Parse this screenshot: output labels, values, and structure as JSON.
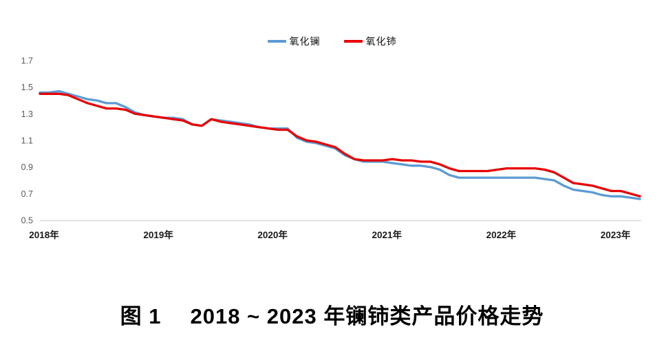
{
  "page": {
    "background": "#ffffff"
  },
  "legend": {
    "items": [
      {
        "label": "氧化镧",
        "color": "#5b9bd5"
      },
      {
        "label": "氧化铈",
        "color": "#e80000"
      }
    ]
  },
  "caption": {
    "figure_label": "图 1",
    "title": "2018 ~ 2023 年镧铈类产品价格走势"
  },
  "chart_data": {
    "type": "line",
    "title": "图 1 2018~2023 年镧铈类产品价格走势",
    "xlabel": "",
    "ylabel": "",
    "ylim": [
      0.5,
      1.7
    ],
    "yticks": [
      "1.7",
      "1.5",
      "1.3",
      "1.1",
      "0.9",
      "0.7",
      "0.5"
    ],
    "grid": false,
    "legend_position": "top-center",
    "x_year_labels": [
      "2018年",
      "2019年",
      "2020年",
      "2021年",
      "2022年",
      "2023年"
    ],
    "x_year_month_index": [
      0,
      12,
      24,
      36,
      48,
      60
    ],
    "x": [
      "2018-01",
      "2018-02",
      "2018-03",
      "2018-04",
      "2018-05",
      "2018-06",
      "2018-07",
      "2018-08",
      "2018-09",
      "2018-10",
      "2018-11",
      "2018-12",
      "2019-01",
      "2019-02",
      "2019-03",
      "2019-04",
      "2019-05",
      "2019-06",
      "2019-07",
      "2019-08",
      "2019-09",
      "2019-10",
      "2019-11",
      "2019-12",
      "2020-01",
      "2020-02",
      "2020-03",
      "2020-04",
      "2020-05",
      "2020-06",
      "2020-07",
      "2020-08",
      "2020-09",
      "2020-10",
      "2020-11",
      "2020-12",
      "2021-01",
      "2021-02",
      "2021-03",
      "2021-04",
      "2021-05",
      "2021-06",
      "2021-07",
      "2021-08",
      "2021-09",
      "2021-10",
      "2021-11",
      "2021-12",
      "2022-01",
      "2022-02",
      "2022-03",
      "2022-04",
      "2022-05",
      "2022-06",
      "2022-07",
      "2022-08",
      "2022-09",
      "2022-10",
      "2022-11",
      "2022-12",
      "2023-01",
      "2023-02",
      "2023-03",
      "2023-04"
    ],
    "series": [
      {
        "name": "氧化镧",
        "color": "#5b9bd5",
        "values": [
          1.46,
          1.46,
          1.47,
          1.45,
          1.43,
          1.41,
          1.4,
          1.38,
          1.38,
          1.35,
          1.31,
          1.29,
          1.28,
          1.27,
          1.27,
          1.26,
          1.22,
          1.21,
          1.26,
          1.25,
          1.24,
          1.23,
          1.22,
          1.2,
          1.19,
          1.19,
          1.19,
          1.12,
          1.09,
          1.08,
          1.06,
          1.04,
          0.99,
          0.96,
          0.94,
          0.94,
          0.94,
          0.93,
          0.92,
          0.91,
          0.91,
          0.9,
          0.88,
          0.84,
          0.82,
          0.82,
          0.82,
          0.82,
          0.82,
          0.82,
          0.82,
          0.82,
          0.82,
          0.81,
          0.8,
          0.76,
          0.73,
          0.72,
          0.71,
          0.69,
          0.68,
          0.68,
          0.67,
          0.66
        ]
      },
      {
        "name": "氧化铈",
        "color": "#e80000",
        "values": [
          1.45,
          1.45,
          1.45,
          1.44,
          1.41,
          1.38,
          1.36,
          1.34,
          1.34,
          1.33,
          1.3,
          1.29,
          1.28,
          1.27,
          1.26,
          1.25,
          1.22,
          1.21,
          1.26,
          1.24,
          1.23,
          1.22,
          1.21,
          1.2,
          1.19,
          1.18,
          1.18,
          1.13,
          1.1,
          1.09,
          1.07,
          1.05,
          1.0,
          0.96,
          0.95,
          0.95,
          0.95,
          0.96,
          0.95,
          0.95,
          0.94,
          0.94,
          0.92,
          0.89,
          0.87,
          0.87,
          0.87,
          0.87,
          0.88,
          0.89,
          0.89,
          0.89,
          0.89,
          0.88,
          0.86,
          0.82,
          0.78,
          0.77,
          0.76,
          0.74,
          0.72,
          0.72,
          0.7,
          0.68
        ]
      }
    ]
  }
}
